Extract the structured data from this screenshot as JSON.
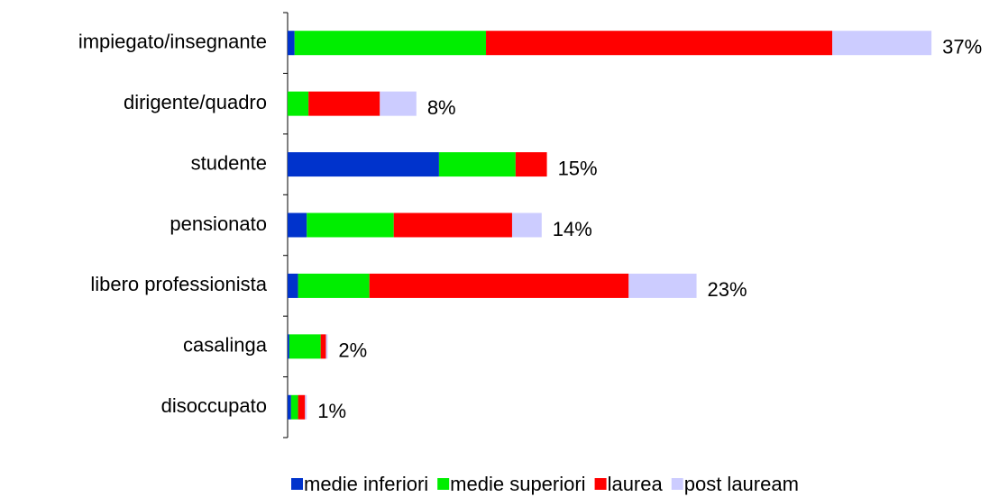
{
  "chart_data": {
    "type": "stacked-bar-horizontal",
    "categories": [
      "impiegato/insegnante",
      "dirigente/quadro",
      "studente",
      "pensionato",
      "libero professionista",
      "casalinga",
      "disoccupato"
    ],
    "series": [
      {
        "name": "medie inferiori",
        "color": "#0033cc",
        "values": [
          0.4,
          0,
          8.7,
          1.1,
          0.6,
          0.1,
          0.2
        ]
      },
      {
        "name": "medie superiori",
        "color": "#00ee00",
        "values": [
          11.0,
          1.2,
          4.4,
          5.0,
          4.1,
          1.8,
          0.4
        ]
      },
      {
        "name": "laurea",
        "color": "#ff0000",
        "values": [
          19.9,
          4.1,
          1.8,
          6.8,
          14.9,
          0.3,
          0.4
        ]
      },
      {
        "name": "post lauream",
        "color": "#ccccff",
        "values": [
          5.7,
          2.1,
          0,
          1.7,
          3.9,
          0.1,
          0.1
        ]
      }
    ],
    "total_labels": [
      "37%",
      "8%",
      "15%",
      "14%",
      "23%",
      "2%",
      "1%"
    ],
    "xlim": [
      0,
      40
    ],
    "legend": "bottom"
  }
}
